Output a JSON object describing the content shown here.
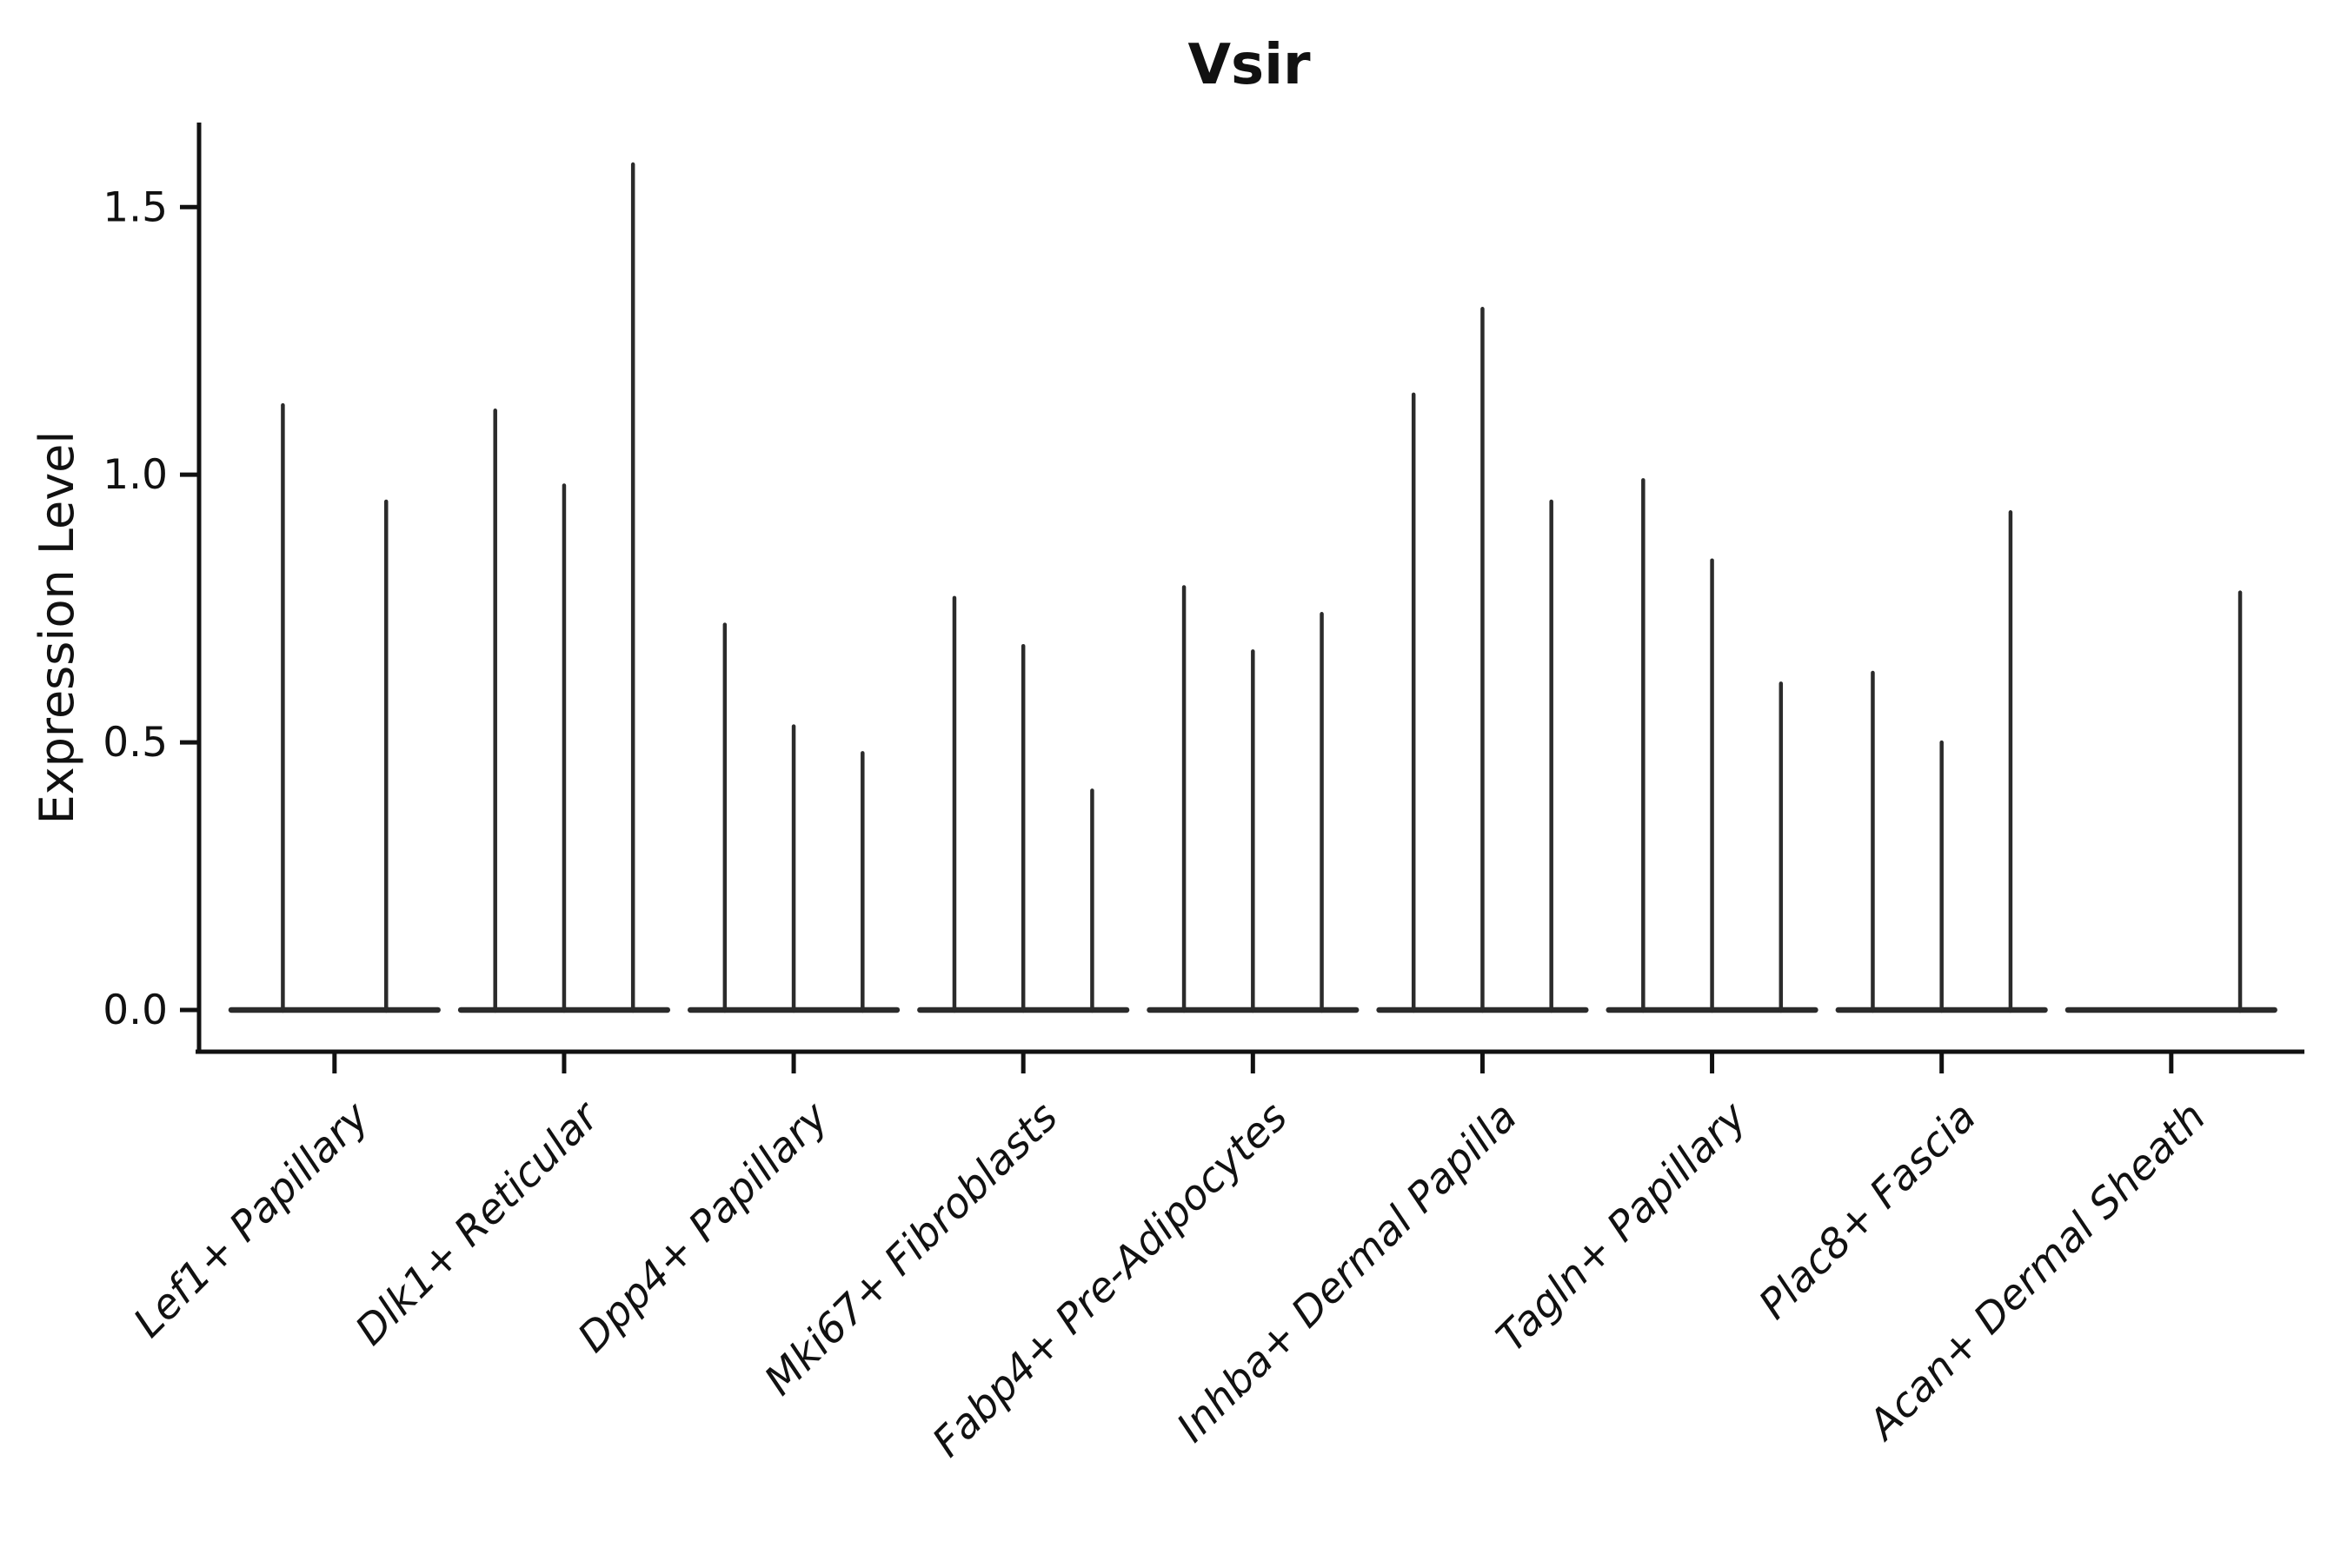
{
  "title": "Vsir",
  "chart_data": {
    "type": "violin",
    "title": "Vsir",
    "xlabel": "",
    "ylabel": "Expression Level",
    "ytick_labels": [
      "0.0",
      "0.5",
      "1.0",
      "1.5"
    ],
    "ytick_values": [
      0.0,
      0.5,
      1.0,
      1.5
    ],
    "ylim": [
      -0.078,
      1.658
    ],
    "xlim": [
      -0.59,
      8.58
    ],
    "grid": false,
    "legend": "none",
    "x_label_rotation_deg": 45,
    "style": {
      "violin_line_color": "#2b2b2b",
      "axis_color": "#111111",
      "text_color": "#111111",
      "background": "#ffffff"
    },
    "categories": [
      {
        "label": "Lef1+ Papillary",
        "violins": [
          {
            "offset": -0.225,
            "width": 0.45,
            "max_expression": 1.13
          },
          {
            "offset": 0.225,
            "width": 0.45,
            "max_expression": 0.95
          }
        ]
      },
      {
        "label": "Dlk1+ Reticular",
        "violins": [
          {
            "offset": -0.3,
            "width": 0.3,
            "max_expression": 1.12
          },
          {
            "offset": 0.0,
            "width": 0.3,
            "max_expression": 0.98
          },
          {
            "offset": 0.3,
            "width": 0.3,
            "max_expression": 1.58
          }
        ]
      },
      {
        "label": "Dpp4+ Papillary",
        "violins": [
          {
            "offset": -0.3,
            "width": 0.3,
            "max_expression": 0.72
          },
          {
            "offset": 0.0,
            "width": 0.3,
            "max_expression": 0.53
          },
          {
            "offset": 0.3,
            "width": 0.3,
            "max_expression": 0.48
          }
        ]
      },
      {
        "label": "Mki67+ Fibroblasts",
        "violins": [
          {
            "offset": -0.3,
            "width": 0.3,
            "max_expression": 0.77
          },
          {
            "offset": 0.0,
            "width": 0.3,
            "max_expression": 0.68
          },
          {
            "offset": 0.3,
            "width": 0.3,
            "max_expression": 0.41
          }
        ]
      },
      {
        "label": "Fabp4+ Pre-Adipocytes",
        "violins": [
          {
            "offset": -0.3,
            "width": 0.3,
            "max_expression": 0.79
          },
          {
            "offset": 0.0,
            "width": 0.3,
            "max_expression": 0.67
          },
          {
            "offset": 0.3,
            "width": 0.3,
            "max_expression": 0.74
          }
        ]
      },
      {
        "label": "Inhba+ Dermal Papilla",
        "violins": [
          {
            "offset": -0.3,
            "width": 0.3,
            "max_expression": 1.15
          },
          {
            "offset": 0.0,
            "width": 0.3,
            "max_expression": 1.31
          },
          {
            "offset": 0.3,
            "width": 0.3,
            "max_expression": 0.95
          }
        ]
      },
      {
        "label": "Tagln+ Papillary",
        "violins": [
          {
            "offset": -0.3,
            "width": 0.3,
            "max_expression": 0.99
          },
          {
            "offset": 0.0,
            "width": 0.3,
            "max_expression": 0.84
          },
          {
            "offset": 0.3,
            "width": 0.3,
            "max_expression": 0.61
          }
        ]
      },
      {
        "label": "Plac8+ Fascia",
        "violins": [
          {
            "offset": -0.3,
            "width": 0.3,
            "max_expression": 0.63
          },
          {
            "offset": 0.0,
            "width": 0.3,
            "max_expression": 0.5
          },
          {
            "offset": 0.3,
            "width": 0.3,
            "max_expression": 0.93
          }
        ]
      },
      {
        "label": "Acan+ Dermal Sheath",
        "violins": [
          {
            "offset": -0.3,
            "width": 0.3,
            "max_expression": 0.0
          },
          {
            "offset": 0.0,
            "width": 0.3,
            "max_expression": 0.0
          },
          {
            "offset": 0.3,
            "width": 0.3,
            "max_expression": 0.78
          }
        ]
      }
    ]
  }
}
